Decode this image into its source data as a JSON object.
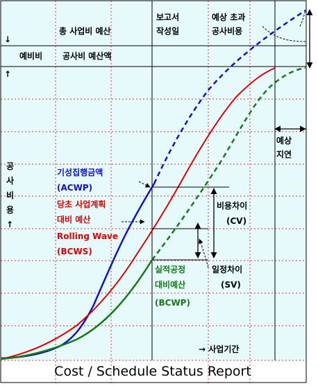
{
  "header": {
    "total_budget": "총 사업비 예산",
    "report_date_line1": "보고서",
    "report_date_line2": "작성일",
    "overrun_line1": "예상 초과",
    "overrun_line2": "공사비용",
    "down_arrow": "↓",
    "contingency": "예비비",
    "construction_budget": "공사비 예산액",
    "up_arrow": "↑"
  },
  "y_axis_label": [
    "공",
    "사",
    "비",
    "용",
    "↑"
  ],
  "acwp": {
    "line1": "기성집행금액",
    "line2": "(ACWP)",
    "color": "#1010c8"
  },
  "bcws": {
    "line1": "당초 사업계획",
    "line2": "대비 예산",
    "line3": "Rolling Wave",
    "line4": "(BCWS)",
    "color": "#dd0000"
  },
  "bcwp": {
    "line1": "실적공정",
    "line2": "대비예산",
    "line3": "(BCWP)",
    "color": "#157a15"
  },
  "cost_variance": {
    "line1": "비용차이",
    "line2": "(CV)"
  },
  "schedule_variance": {
    "line1": "일정차이",
    "line2": "(SV)"
  },
  "expected_delay": {
    "line1": "예상",
    "line2": "지연"
  },
  "project_period": "→ 사업기간",
  "footer_title": "Cost / Schedule Status Report",
  "colors": {
    "background": "#e6fafc",
    "grid": "#e03030"
  }
}
